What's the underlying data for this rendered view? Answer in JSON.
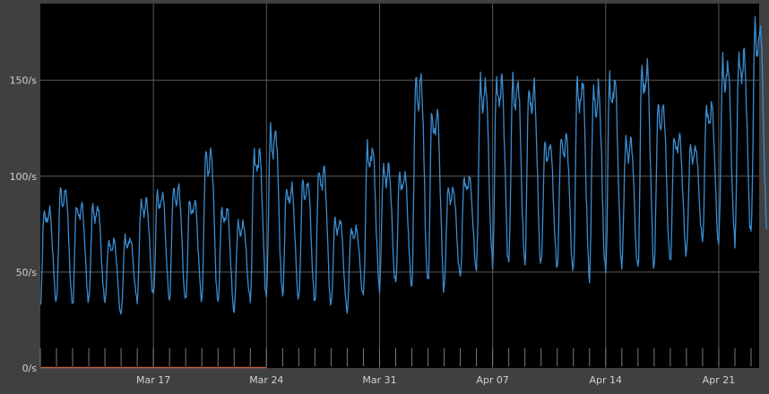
{
  "chart_data": {
    "type": "line",
    "title": "",
    "xlabel": "",
    "ylabel": "",
    "x_ticks": [
      "Mar 17",
      "Mar 24",
      "Mar 31",
      "Apr 07",
      "Apr 14",
      "Apr 21"
    ],
    "x_tick_dates": [
      "2024-03-17",
      "2024-03-24",
      "2024-03-31",
      "2024-04-07",
      "2024-04-14",
      "2024-04-21"
    ],
    "x_range": [
      "2024-03-10",
      "2024-04-23"
    ],
    "y_ticks": [
      "0/s",
      "50/s",
      "100/s",
      "150/s"
    ],
    "y_tick_values": [
      0,
      50,
      100,
      150
    ],
    "ylim": [
      0,
      190
    ],
    "grid": true,
    "legend": "none",
    "colors": {
      "background": "#000000",
      "frame": "#404040",
      "grid": "#5a5a5a",
      "series": "#3a8ccf",
      "baseline": "#c0604a",
      "text": "#d0d0d0"
    },
    "series": [
      {
        "color": "#3a8ccf",
        "x": [
          "2024-03-10",
          "2024-03-11",
          "2024-03-12",
          "2024-03-13",
          "2024-03-14",
          "2024-03-15",
          "2024-03-16",
          "2024-03-17",
          "2024-03-18",
          "2024-03-19",
          "2024-03-20",
          "2024-03-21",
          "2024-03-22",
          "2024-03-23",
          "2024-03-24",
          "2024-03-25",
          "2024-03-26",
          "2024-03-27",
          "2024-03-28",
          "2024-03-29",
          "2024-03-30",
          "2024-03-31",
          "2024-04-01",
          "2024-04-02",
          "2024-04-03",
          "2024-04-04",
          "2024-04-05",
          "2024-04-06",
          "2024-04-07",
          "2024-04-08",
          "2024-04-09",
          "2024-04-10",
          "2024-04-11",
          "2024-04-12",
          "2024-04-13",
          "2024-04-14",
          "2024-04-15",
          "2024-04-16",
          "2024-04-17",
          "2024-04-18",
          "2024-04-19",
          "2024-04-20",
          "2024-04-21",
          "2024-04-22",
          "2024-04-23"
        ],
        "daily_peak": [
          83,
          94,
          86,
          85,
          67,
          68,
          88,
          92,
          95,
          88,
          114,
          84,
          76,
          114,
          125,
          95,
          98,
          105,
          78,
          73,
          116,
          106,
          102,
          153,
          135,
          94,
          100,
          150,
          152,
          151,
          148,
          118,
          122,
          151,
          147,
          152,
          120,
          159,
          138,
          122,
          116,
          138,
          160,
          165,
          180
        ],
        "daily_low": [
          33,
          35,
          33,
          35,
          35,
          28,
          36,
          38,
          36,
          35,
          36,
          34,
          30,
          36,
          38,
          38,
          36,
          35,
          33,
          30,
          38,
          42,
          44,
          43,
          44,
          42,
          48,
          52,
          55,
          55,
          55,
          54,
          53,
          50,
          48,
          50,
          54,
          52,
          53,
          55,
          60,
          67,
          65,
          67,
          70
        ]
      }
    ]
  }
}
